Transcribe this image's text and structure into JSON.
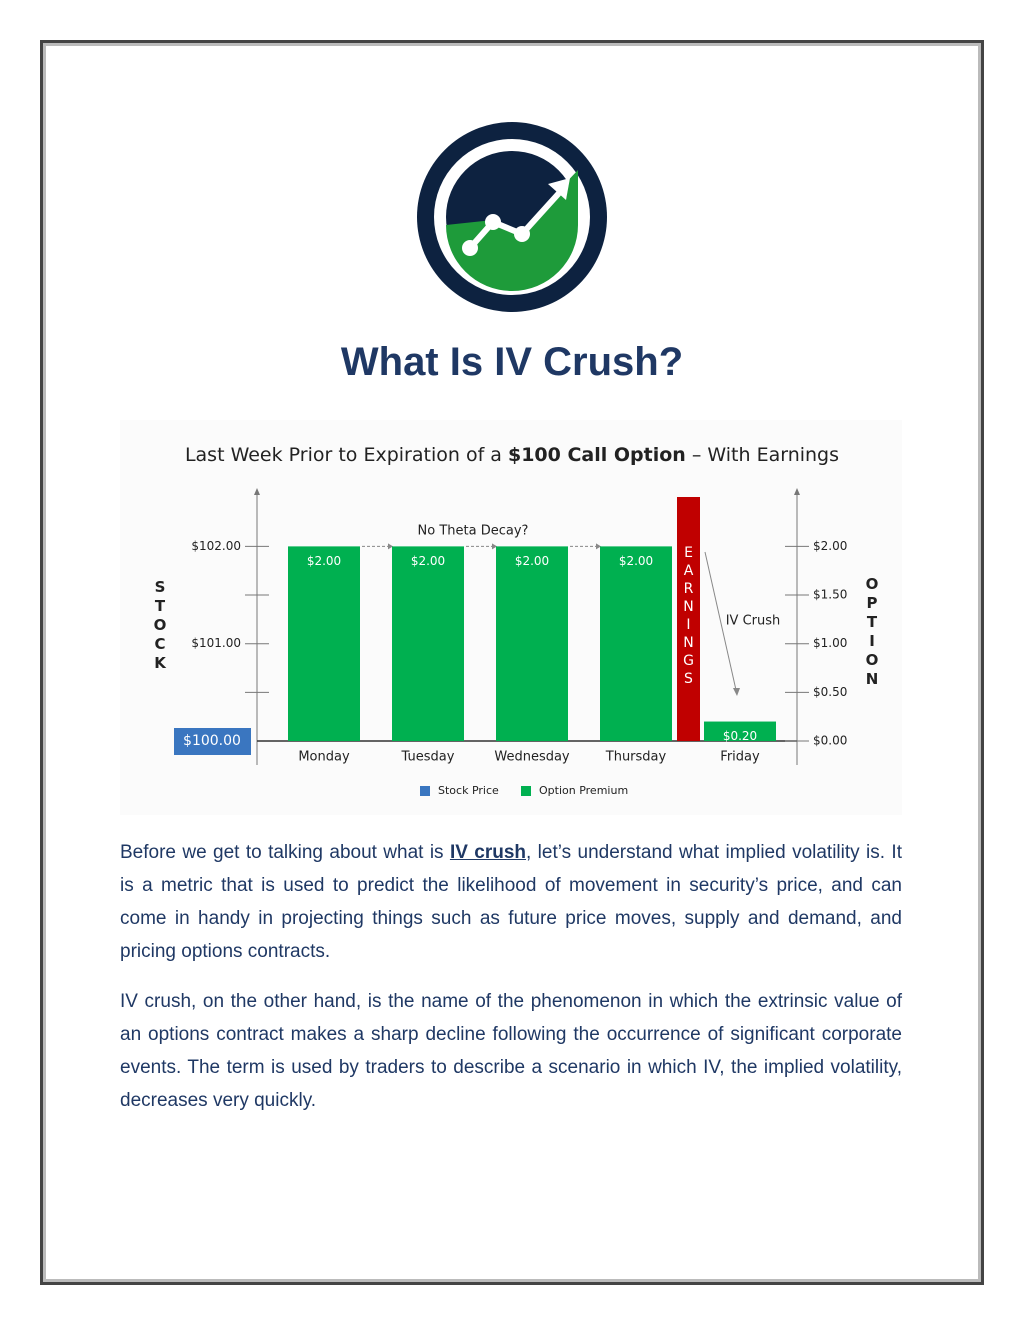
{
  "title": "What Is IV Crush?",
  "chart_data": {
    "type": "bar",
    "title": [
      "Last Week Prior to Expiration of a ",
      "$100 Call Option",
      " – With Earnings"
    ],
    "categories": [
      "Monday",
      "Tuesday",
      "Wednesday",
      "Thursday",
      "Friday"
    ],
    "series": [
      {
        "name": "Option Premium",
        "color": "#00b050",
        "axis": "y2",
        "values": [
          2,
          2,
          2,
          2,
          0.2
        ],
        "value_labels": [
          "$2.00",
          "$2.00",
          "$2.00",
          "$2.00",
          "$0.20"
        ]
      }
    ],
    "ylabel": "STOCK",
    "y2label": "OPTION",
    "ylim": [
      100,
      102.6
    ],
    "yticks": [
      {
        "value": 102,
        "label": "$102.00"
      },
      {
        "value": 101,
        "label": "$101.00"
      },
      {
        "value": 100,
        "label": "$100.00"
      }
    ],
    "yticks_minor": [
      101.5,
      100.5
    ],
    "stock_color": "#3a76c0",
    "y2lim": [
      0,
      2.6
    ],
    "y2ticks": [
      {
        "value": 2,
        "label": "$2.00"
      },
      {
        "value": 1.5,
        "label": "$1.50"
      },
      {
        "value": 1,
        "label": "$1.00"
      },
      {
        "value": 0.5,
        "label": "$0.50"
      },
      {
        "value": 0,
        "label": "$0.00"
      }
    ],
    "annotations": {
      "earnings": "EARNINGS",
      "theta": "No Theta Decay?",
      "crush": "IV Crush"
    },
    "legend": [
      {
        "name": "Stock Price",
        "color": "#3a76c0"
      },
      {
        "name": "Option Premium",
        "color": "#00b050"
      }
    ]
  },
  "paragraphs": [
    [
      "Before we get to talking about what is ",
      "IV crush",
      ", let’s understand what implied volatility is. It is a metric that is used to predict the likelihood of movement in security’s price, and can come in handy in projecting things such as future price moves, supply and demand, and pricing options contracts."
    ],
    [
      "IV crush, on the other hand, is the name of the phenomenon in which the extrinsic value of an options contract makes a sharp decline following the occurrence of significant corporate events. The term is used by traders to describe a scenario in which IV, the implied volatility, decreases very quickly."
    ]
  ]
}
